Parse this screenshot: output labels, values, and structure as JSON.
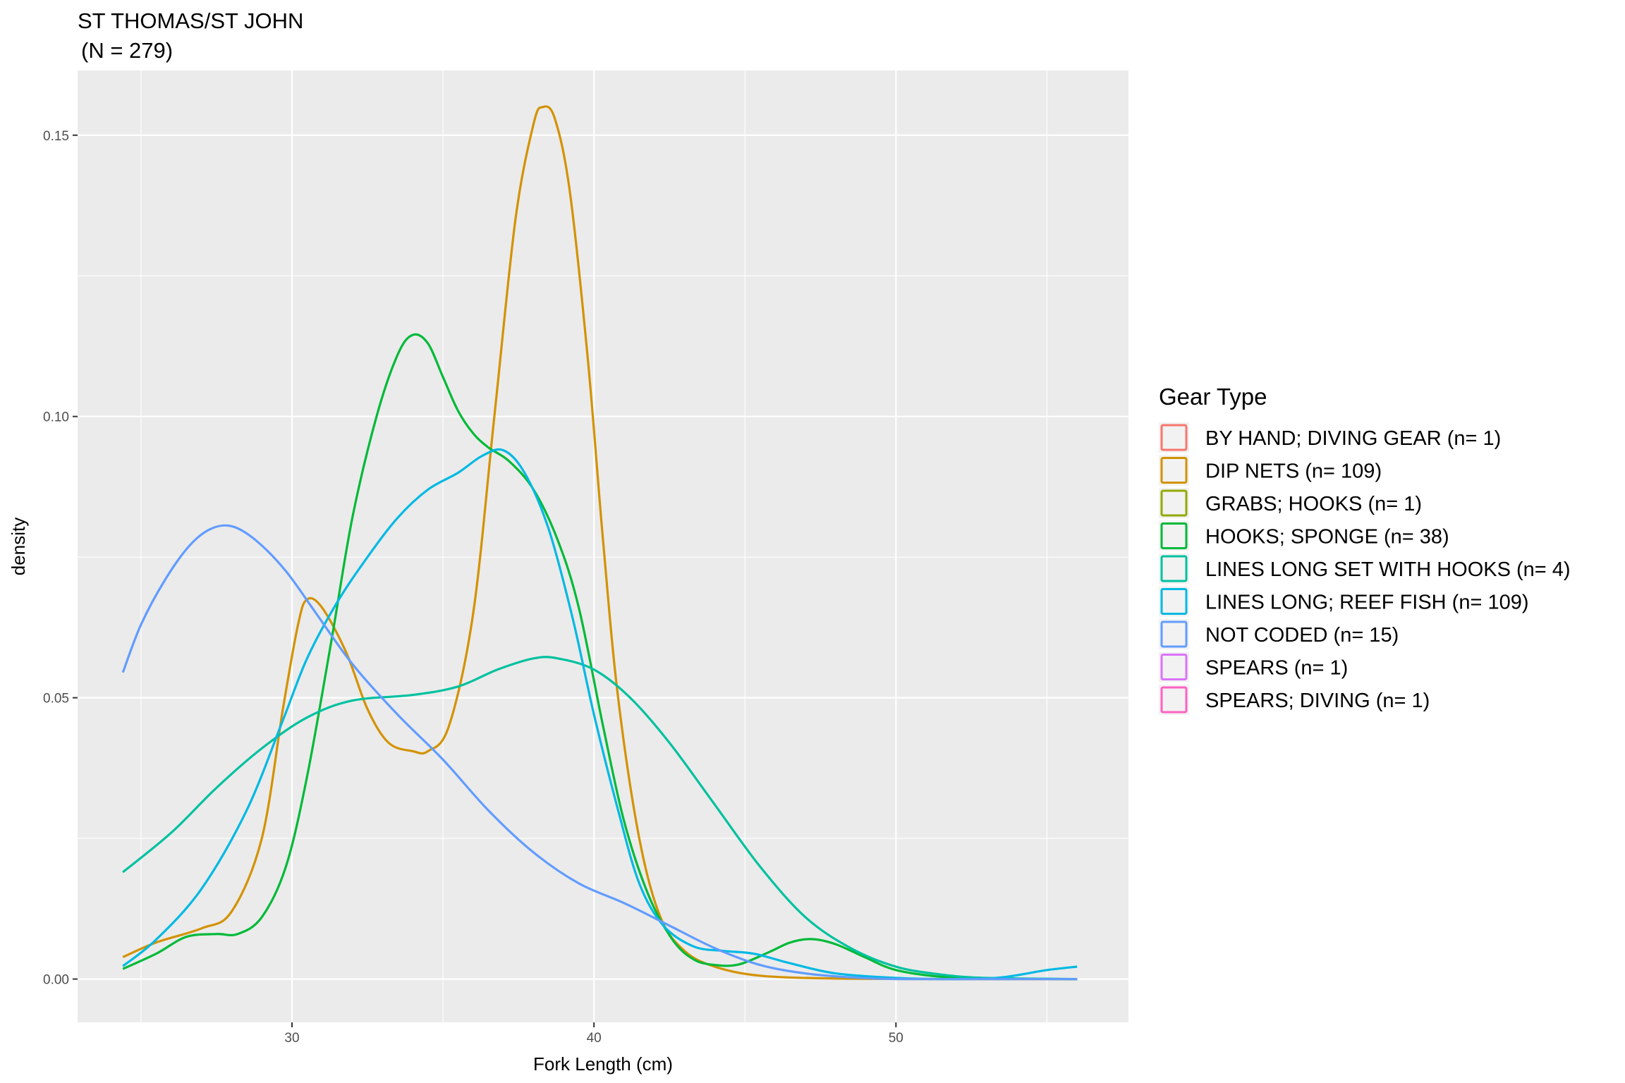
{
  "chart_data": {
    "type": "line",
    "title": "ST THOMAS/ST JOHN",
    "subtitle": "(N = 279)",
    "xlabel": "Fork Length (cm)",
    "ylabel": "density",
    "xlim": [
      22.9,
      57.7
    ],
    "ylim": [
      -0.0077,
      0.1615
    ],
    "x_ticks": [
      30,
      40,
      50
    ],
    "x_tick_labels": [
      "30",
      "40",
      "50"
    ],
    "y_ticks": [
      0,
      0.05,
      0.1,
      0.15
    ],
    "y_tick_labels": [
      "0.00",
      "0.05",
      "0.10",
      "0.15"
    ],
    "grid": true,
    "legend": {
      "title": "Gear Type",
      "position": "right",
      "entries": [
        {
          "label": "BY HAND; DIVING GEAR (n= 1)",
          "color": "#F8766D"
        },
        {
          "label": "DIP NETS (n= 109)",
          "color": "#D39200"
        },
        {
          "label": "GRABS; HOOKS (n= 1)",
          "color": "#93AA00"
        },
        {
          "label": "HOOKS; SPONGE (n= 38)",
          "color": "#00BA38"
        },
        {
          "label": "LINES LONG SET WITH HOOKS (n= 4)",
          "color": "#00C19F"
        },
        {
          "label": "LINES LONG; REEF FISH (n= 109)",
          "color": "#00B9E3"
        },
        {
          "label": "NOT CODED (n= 15)",
          "color": "#619CFF"
        },
        {
          "label": "SPEARS (n= 1)",
          "color": "#DB72FB"
        },
        {
          "label": "SPEARS; DIVING (n= 1)",
          "color": "#FF61C3"
        }
      ]
    },
    "series": [
      {
        "name": "DIP NETS (n= 109)",
        "color": "#D39200",
        "points": [
          [
            24.4,
            0.0039
          ],
          [
            25.5,
            0.0065
          ],
          [
            27,
            0.009
          ],
          [
            28,
            0.012
          ],
          [
            29,
            0.025
          ],
          [
            29.7,
            0.048
          ],
          [
            30.2,
            0.063
          ],
          [
            30.5,
            0.0675
          ],
          [
            31,
            0.066
          ],
          [
            31.8,
            0.058
          ],
          [
            32.5,
            0.048
          ],
          [
            33.2,
            0.042
          ],
          [
            34,
            0.0405
          ],
          [
            34.5,
            0.0405
          ],
          [
            35.2,
            0.045
          ],
          [
            36,
            0.065
          ],
          [
            36.7,
            0.1
          ],
          [
            37.4,
            0.135
          ],
          [
            38,
            0.152
          ],
          [
            38.3,
            0.155
          ],
          [
            38.7,
            0.153
          ],
          [
            39.2,
            0.14
          ],
          [
            39.8,
            0.11
          ],
          [
            40.3,
            0.078
          ],
          [
            40.8,
            0.05
          ],
          [
            41.5,
            0.025
          ],
          [
            42.2,
            0.011
          ],
          [
            43,
            0.005
          ],
          [
            44,
            0.0022
          ],
          [
            45.5,
            0.0006
          ],
          [
            48,
            0.0001
          ],
          [
            52,
            0
          ],
          [
            56,
            0
          ]
        ]
      },
      {
        "name": "HOOKS; SPONGE (n= 38)",
        "color": "#00BA38",
        "points": [
          [
            24.4,
            0.0018
          ],
          [
            25.5,
            0.0045
          ],
          [
            26.5,
            0.0075
          ],
          [
            27.5,
            0.008
          ],
          [
            28.2,
            0.008
          ],
          [
            29,
            0.011
          ],
          [
            29.8,
            0.02
          ],
          [
            30.5,
            0.036
          ],
          [
            31.3,
            0.06
          ],
          [
            32,
            0.082
          ],
          [
            32.8,
            0.1
          ],
          [
            33.5,
            0.111
          ],
          [
            34,
            0.1145
          ],
          [
            34.5,
            0.113
          ],
          [
            35,
            0.107
          ],
          [
            35.5,
            0.101
          ],
          [
            36,
            0.097
          ],
          [
            36.5,
            0.0945
          ],
          [
            37.2,
            0.092
          ],
          [
            38,
            0.087
          ],
          [
            38.8,
            0.078
          ],
          [
            39.5,
            0.066
          ],
          [
            40.3,
            0.045
          ],
          [
            41,
            0.028
          ],
          [
            41.8,
            0.015
          ],
          [
            42.6,
            0.007
          ],
          [
            43.3,
            0.0035
          ],
          [
            44,
            0.0025
          ],
          [
            44.8,
            0.0026
          ],
          [
            45.8,
            0.0048
          ],
          [
            46.5,
            0.0065
          ],
          [
            47.2,
            0.0071
          ],
          [
            48,
            0.0062
          ],
          [
            49,
            0.0038
          ],
          [
            50,
            0.0016
          ],
          [
            51.5,
            0.0004
          ],
          [
            53,
            0.0001
          ],
          [
            56,
            0
          ]
        ]
      },
      {
        "name": "LINES LONG SET WITH HOOKS (n= 4)",
        "color": "#00C19F",
        "points": [
          [
            24.4,
            0.019
          ],
          [
            26,
            0.026
          ],
          [
            27.5,
            0.034
          ],
          [
            29,
            0.041
          ],
          [
            30.5,
            0.0465
          ],
          [
            32,
            0.0495
          ],
          [
            34,
            0.0505
          ],
          [
            35.5,
            0.052
          ],
          [
            36.8,
            0.055
          ],
          [
            38,
            0.057
          ],
          [
            38.8,
            0.057
          ],
          [
            40,
            0.055
          ],
          [
            41.2,
            0.05
          ],
          [
            42.5,
            0.042
          ],
          [
            44,
            0.031
          ],
          [
            45.5,
            0.02
          ],
          [
            47,
            0.011
          ],
          [
            48.5,
            0.0055
          ],
          [
            50,
            0.0022
          ],
          [
            51.5,
            0.0008
          ],
          [
            53,
            0.0002
          ],
          [
            56,
            0
          ]
        ]
      },
      {
        "name": "LINES LONG; REEF FISH (n= 109)",
        "color": "#00B9E3",
        "points": [
          [
            24.4,
            0.0023
          ],
          [
            25.5,
            0.007
          ],
          [
            27,
            0.016
          ],
          [
            28.5,
            0.03
          ],
          [
            29.7,
            0.046
          ],
          [
            30.5,
            0.057
          ],
          [
            31.5,
            0.067
          ],
          [
            32.5,
            0.075
          ],
          [
            33.5,
            0.082
          ],
          [
            34.5,
            0.087
          ],
          [
            35.5,
            0.09
          ],
          [
            36.3,
            0.093
          ],
          [
            37,
            0.094
          ],
          [
            37.7,
            0.09
          ],
          [
            38.5,
            0.08
          ],
          [
            39.3,
            0.064
          ],
          [
            40,
            0.047
          ],
          [
            40.8,
            0.03
          ],
          [
            41.5,
            0.017
          ],
          [
            42.3,
            0.0095
          ],
          [
            43.3,
            0.0058
          ],
          [
            44.3,
            0.005
          ],
          [
            45.3,
            0.0045
          ],
          [
            46.5,
            0.0028
          ],
          [
            48,
            0.001
          ],
          [
            50,
            0.0002
          ],
          [
            52,
            0
          ],
          [
            53.5,
            0.0003
          ],
          [
            55,
            0.0016
          ],
          [
            56,
            0.0022
          ]
        ]
      },
      {
        "name": "NOT CODED (n= 15)",
        "color": "#619CFF",
        "points": [
          [
            24.4,
            0.0545
          ],
          [
            25,
            0.063
          ],
          [
            25.8,
            0.071
          ],
          [
            26.6,
            0.077
          ],
          [
            27.3,
            0.08
          ],
          [
            28,
            0.0805
          ],
          [
            28.8,
            0.078
          ],
          [
            29.8,
            0.0725
          ],
          [
            30.8,
            0.065
          ],
          [
            32,
            0.056
          ],
          [
            33.5,
            0.047
          ],
          [
            35,
            0.039
          ],
          [
            36.5,
            0.03
          ],
          [
            38,
            0.0225
          ],
          [
            39.5,
            0.017
          ],
          [
            41,
            0.0135
          ],
          [
            42.5,
            0.0095
          ],
          [
            44,
            0.0055
          ],
          [
            45.5,
            0.0025
          ],
          [
            47,
            0.001
          ],
          [
            48.5,
            0.0003
          ],
          [
            50,
            0
          ],
          [
            53,
            0
          ],
          [
            56,
            0
          ]
        ]
      }
    ]
  }
}
